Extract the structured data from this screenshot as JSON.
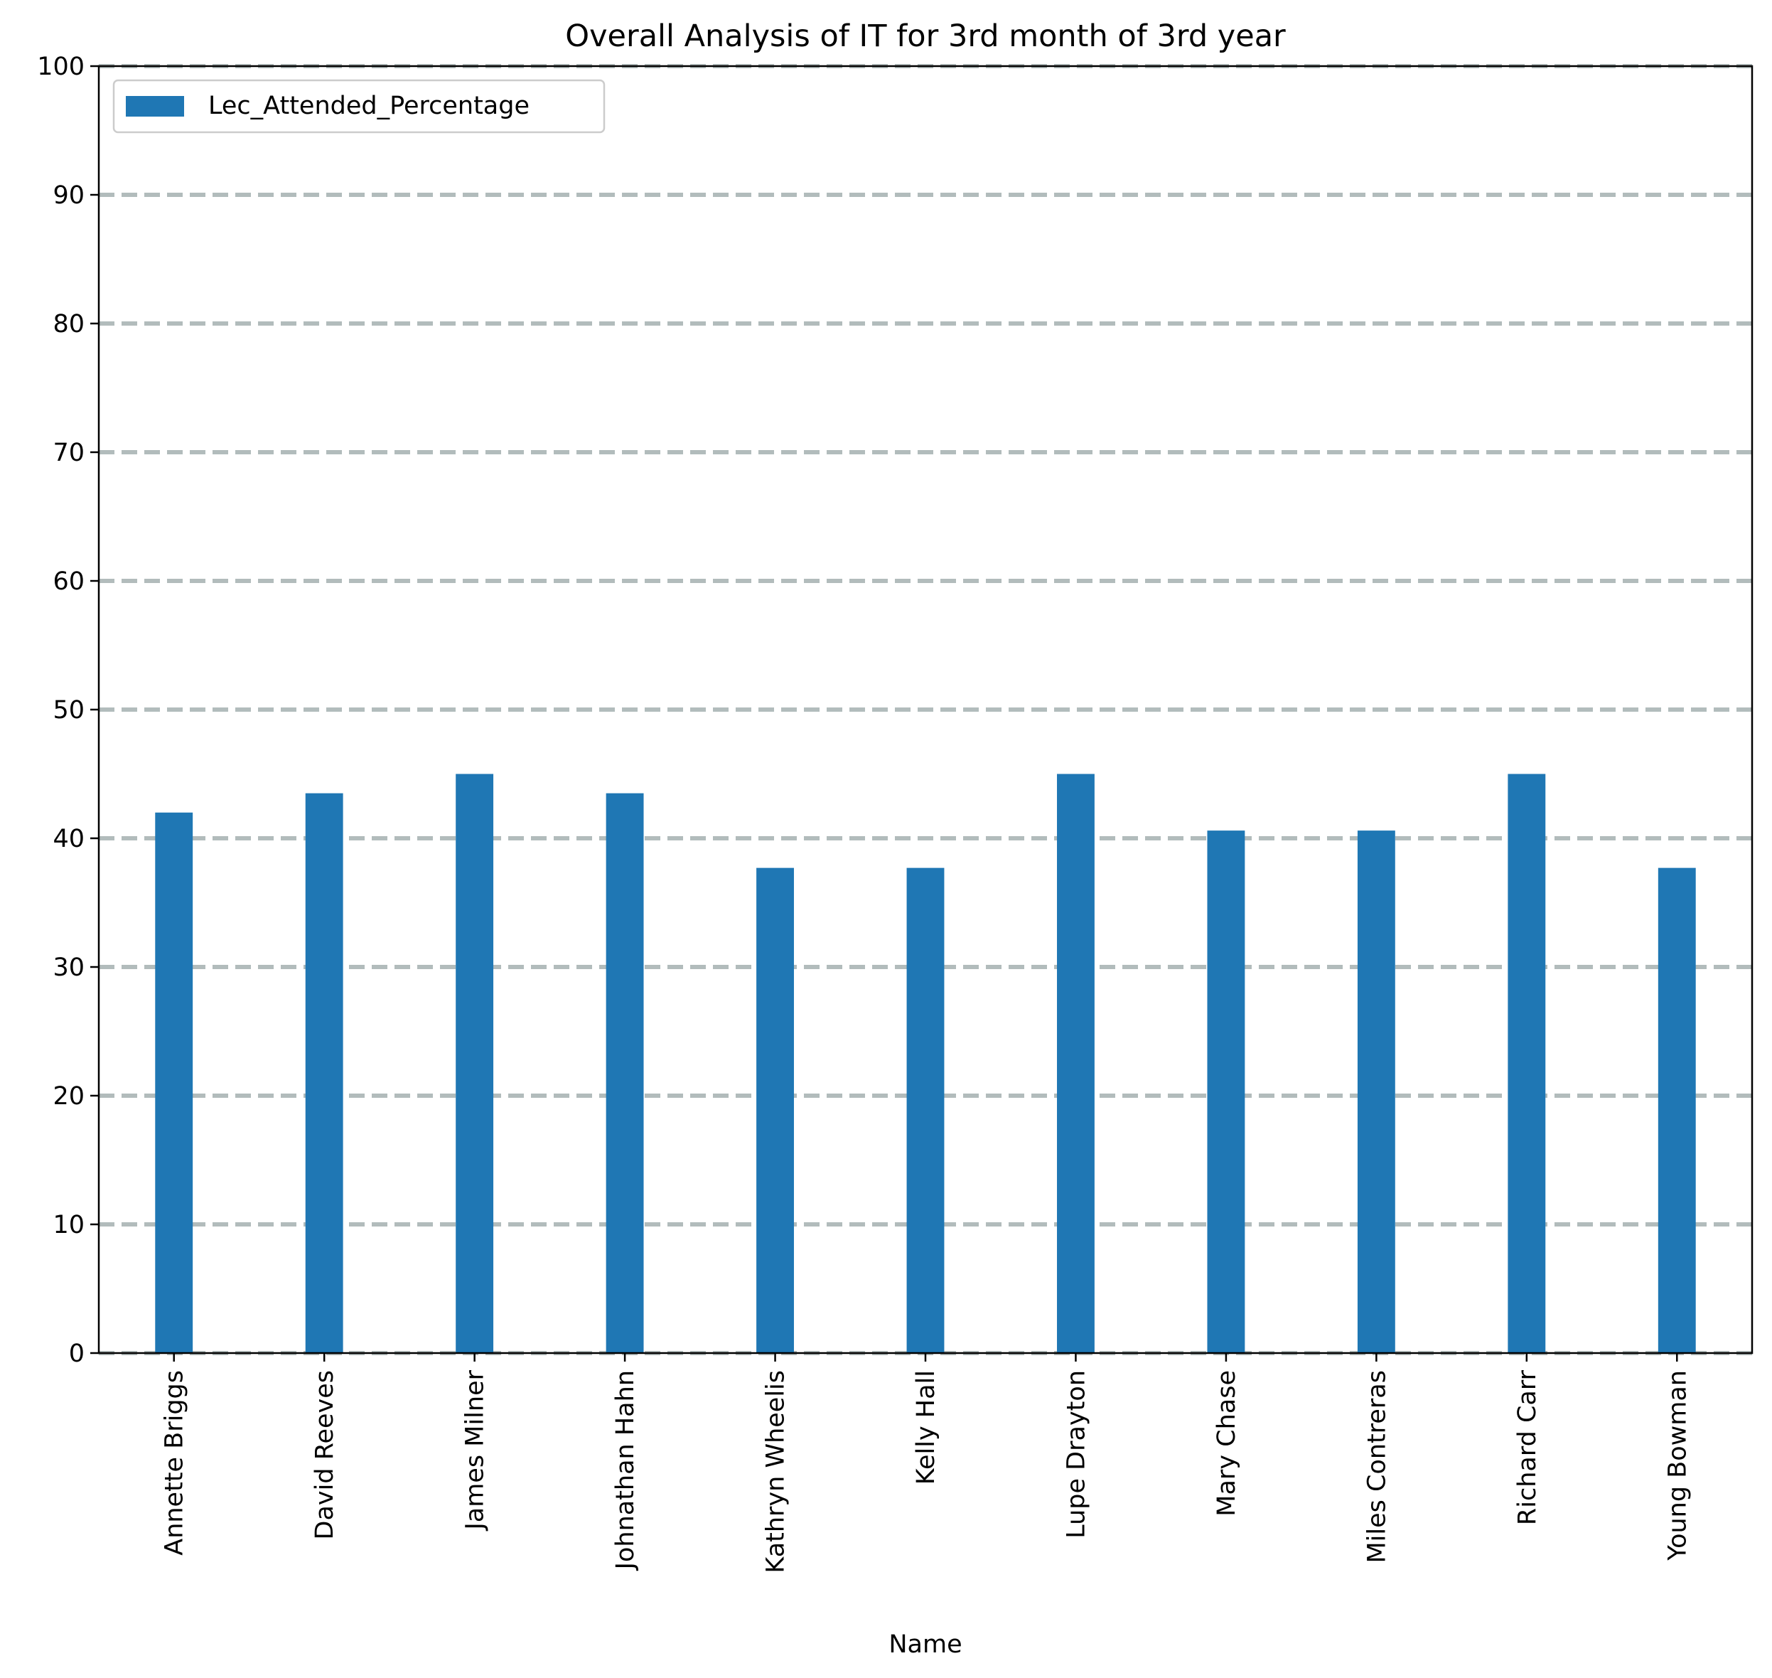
{
  "chart_data": {
    "type": "bar",
    "title": "Overall Analysis of IT for 3rd month of 3rd year",
    "xlabel": "Name",
    "ylabel": "",
    "categories": [
      "Annette Briggs",
      "David Reeves",
      "James Milner",
      "Johnathan Hahn",
      "Kathryn Wheelis",
      "Kelly Hall",
      "Lupe Drayton",
      "Mary Chase",
      "Miles Contreras",
      "Richard Carr",
      "Young Bowman"
    ],
    "series": [
      {
        "name": "Lec_Attended_Percentage",
        "values": [
          42.0,
          43.5,
          45.0,
          43.5,
          37.7,
          37.7,
          45.0,
          40.6,
          40.6,
          45.0,
          37.7
        ]
      }
    ],
    "ylim": [
      0,
      100
    ],
    "yticks": [
      0,
      10,
      20,
      30,
      40,
      50,
      60,
      70,
      80,
      90,
      100
    ],
    "grid": "horizontal dashed",
    "legend_position": "top-left",
    "colors": {
      "bar": "#1f77b4",
      "grid": "#b2bcbc"
    }
  }
}
